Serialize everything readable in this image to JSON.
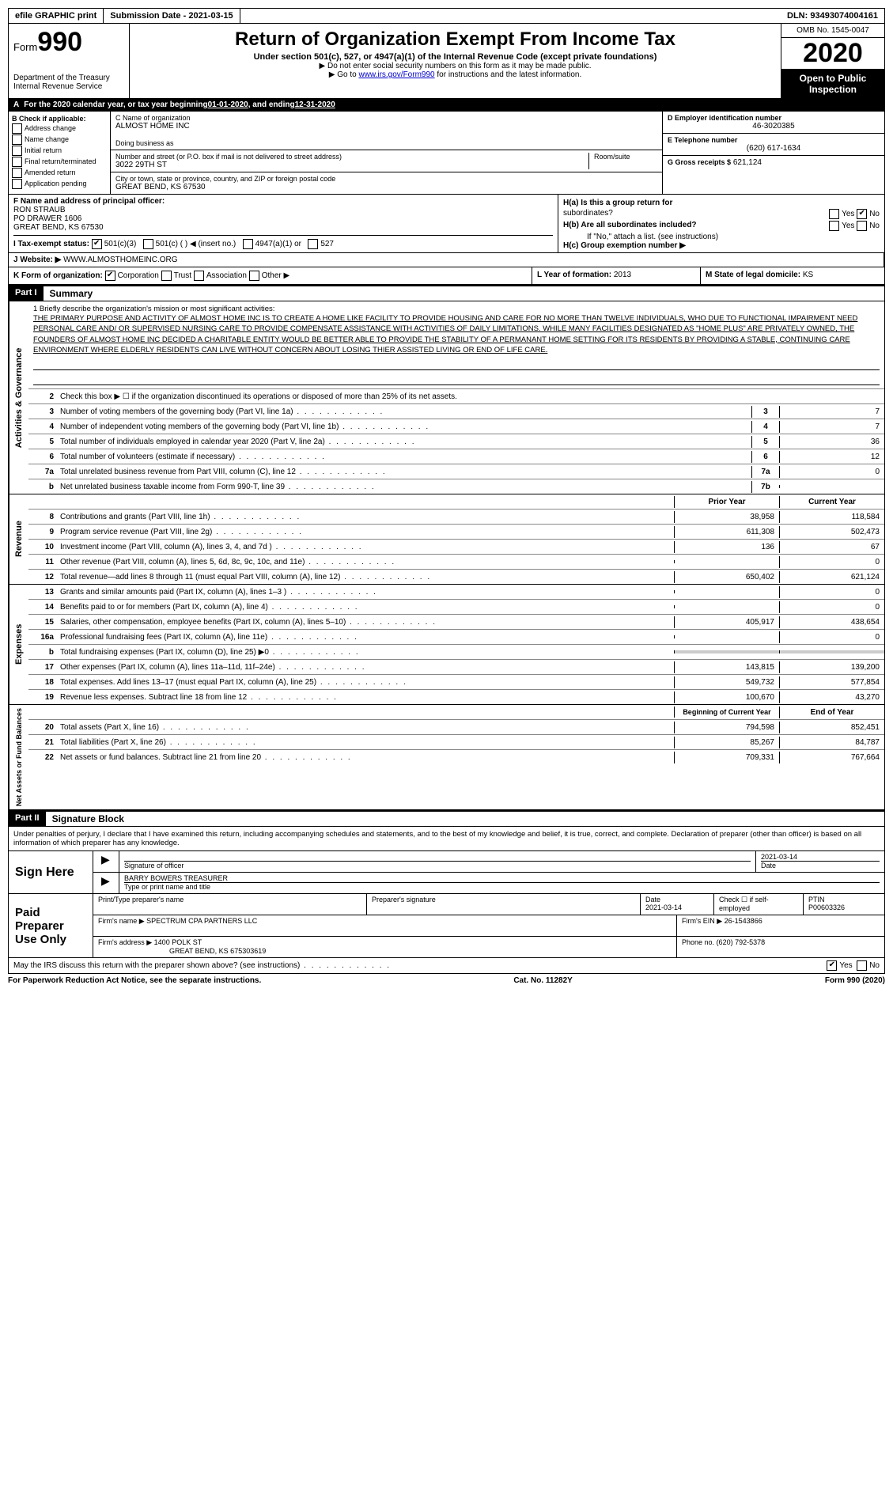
{
  "topbar": {
    "efile": "efile GRAPHIC print",
    "submission_label": "Submission Date - ",
    "submission_date": "2021-03-15",
    "dln_label": "DLN: ",
    "dln": "93493074004161"
  },
  "header": {
    "form_label": "Form",
    "form_number": "990",
    "dept": "Department of the Treasury\nInternal Revenue Service",
    "title": "Return of Organization Exempt From Income Tax",
    "subtitle": "Under section 501(c), 527, or 4947(a)(1) of the Internal Revenue Code (except private foundations)",
    "note1": "▶ Do not enter social security numbers on this form as it may be made public.",
    "note2_pre": "▶ Go to ",
    "note2_link": "www.irs.gov/Form990",
    "note2_post": " for instructions and the latest information.",
    "omb": "OMB No. 1545-0047",
    "year": "2020",
    "inspection": "Open to Public Inspection"
  },
  "row_a": {
    "label_a": "A",
    "text1": "For the 2020 calendar year, or tax year beginning ",
    "begin": "01-01-2020",
    "text2": " , and ending ",
    "end": "12-31-2020"
  },
  "col_b": {
    "label": "B Check if applicable:",
    "opts": [
      "Address change",
      "Name change",
      "Initial return",
      "Final return/terminated",
      "Amended return",
      "Application pending"
    ]
  },
  "col_c": {
    "name_label": "C Name of organization",
    "name": "ALMOST HOME INC",
    "dba_label": "Doing business as",
    "dba": "",
    "street_label": "Number and street (or P.O. box if mail is not delivered to street address)",
    "street": "3022 29TH ST",
    "room_label": "Room/suite",
    "city_label": "City or town, state or province, country, and ZIP or foreign postal code",
    "city": "GREAT BEND, KS  67530"
  },
  "col_d": {
    "label": "D Employer identification number",
    "value": "46-3020385",
    "e_label": "E Telephone number",
    "e_value": "(620) 617-1634",
    "g_label": "G Gross receipts $",
    "g_value": "621,124"
  },
  "col_f": {
    "label": "F  Name and address of principal officer:",
    "name": "RON STRAUB",
    "addr1": "PO DRAWER 1606",
    "addr2": "GREAT BEND, KS  67530"
  },
  "col_h": {
    "a_label": "H(a)  Is this a group return for",
    "a_label2": "subordinates?",
    "a_yes": "Yes",
    "a_no": "No",
    "b_label": "H(b)  Are all subordinates included?",
    "b_yes": "Yes",
    "b_no": "No",
    "b_note": "If \"No,\" attach a list. (see instructions)",
    "c_label": "H(c)  Group exemption number ▶"
  },
  "row_i": {
    "label": "I  Tax-exempt status:",
    "opt1": "501(c)(3)",
    "opt2": "501(c) (  ) ◀ (insert no.)",
    "opt3": "4947(a)(1) or",
    "opt4": "527"
  },
  "row_j": {
    "label": "J  Website: ▶",
    "value": "WWW.ALMOSTHOMEINC.ORG"
  },
  "row_k": {
    "label": "K Form of organization:",
    "opts": [
      "Corporation",
      "Trust",
      "Association",
      "Other ▶"
    ],
    "l_label": "L Year of formation: ",
    "l_value": "2013",
    "m_label": "M State of legal domicile: ",
    "m_value": "KS"
  },
  "part1": {
    "header": "Part I",
    "title": "Summary",
    "side_ag": "Activities & Governance",
    "side_rev": "Revenue",
    "side_exp": "Expenses",
    "side_net": "Net Assets or Fund Balances",
    "mission_label": "1   Briefly describe the organization's mission or most significant activities:",
    "mission_text": "THE PRIMARY PURPOSE AND ACTIVITY OF ALMOST HOME INC IS TO CREATE A HOME LIKE FACILITY TO PROVIDE HOUSING AND CARE FOR NO MORE THAN TWELVE INDIVIDUALS, WHO DUE TO FUNCTIONAL IMPAIRMENT NEED PERSONAL CARE AND/ OR SUPERVISED NURSING CARE TO PROVIDE COMPENSATE ASSISTANCE WITH ACTIVITIES OF DAILY LIMITATIONS. WHILE MANY FACILITIES DESIGNATED AS \"HOME PLUS\" ARE PRIVATELY OWNED, THE FOUNDERS OF ALMOST HOME INC DECIDED A CHARITABLE ENTITY WOULD BE BETTER ABLE TO PROVIDE THE STABILITY OF A PERMANANT HOME SETTING FOR ITS RESIDENTS BY PROVIDING A STABLE, CONTINUING CARE ENVIRONMENT WHERE ELDERLY RESIDENTS CAN LIVE WITHOUT CONCERN ABOUT LOSING THIER ASSISTED LIVING OR END OF LIFE CARE.",
    "line2": "Check this box ▶ ☐ if the organization discontinued its operations or disposed of more than 25% of its net assets.",
    "lines_single": [
      {
        "n": "3",
        "d": "Number of voting members of the governing body (Part VI, line 1a)",
        "box": "3",
        "v": "7"
      },
      {
        "n": "4",
        "d": "Number of independent voting members of the governing body (Part VI, line 1b)",
        "box": "4",
        "v": "7"
      },
      {
        "n": "5",
        "d": "Total number of individuals employed in calendar year 2020 (Part V, line 2a)",
        "box": "5",
        "v": "36"
      },
      {
        "n": "6",
        "d": "Total number of volunteers (estimate if necessary)",
        "box": "6",
        "v": "12"
      },
      {
        "n": "7a",
        "d": "Total unrelated business revenue from Part VIII, column (C), line 12",
        "box": "7a",
        "v": "0"
      },
      {
        "n": "b",
        "d": "Net unrelated business taxable income from Form 990-T, line 39",
        "box": "7b",
        "v": ""
      }
    ],
    "header_prior": "Prior Year",
    "header_current": "Current Year",
    "revenue_lines": [
      {
        "n": "8",
        "d": "Contributions and grants (Part VIII, line 1h)",
        "p": "38,958",
        "c": "118,584"
      },
      {
        "n": "9",
        "d": "Program service revenue (Part VIII, line 2g)",
        "p": "611,308",
        "c": "502,473"
      },
      {
        "n": "10",
        "d": "Investment income (Part VIII, column (A), lines 3, 4, and 7d )",
        "p": "136",
        "c": "67"
      },
      {
        "n": "11",
        "d": "Other revenue (Part VIII, column (A), lines 5, 6d, 8c, 9c, 10c, and 11e)",
        "p": "",
        "c": "0"
      },
      {
        "n": "12",
        "d": "Total revenue—add lines 8 through 11 (must equal Part VIII, column (A), line 12)",
        "p": "650,402",
        "c": "621,124"
      }
    ],
    "expense_lines": [
      {
        "n": "13",
        "d": "Grants and similar amounts paid (Part IX, column (A), lines 1–3 )",
        "p": "",
        "c": "0"
      },
      {
        "n": "14",
        "d": "Benefits paid to or for members (Part IX, column (A), line 4)",
        "p": "",
        "c": "0"
      },
      {
        "n": "15",
        "d": "Salaries, other compensation, employee benefits (Part IX, column (A), lines 5–10)",
        "p": "405,917",
        "c": "438,654"
      },
      {
        "n": "16a",
        "d": "Professional fundraising fees (Part IX, column (A), line 11e)",
        "p": "",
        "c": "0"
      },
      {
        "n": "b",
        "d": "Total fundraising expenses (Part IX, column (D), line 25) ▶0",
        "p": "shade",
        "c": "shade"
      },
      {
        "n": "17",
        "d": "Other expenses (Part IX, column (A), lines 11a–11d, 11f–24e)",
        "p": "143,815",
        "c": "139,200"
      },
      {
        "n": "18",
        "d": "Total expenses. Add lines 13–17 (must equal Part IX, column (A), line 25)",
        "p": "549,732",
        "c": "577,854"
      },
      {
        "n": "19",
        "d": "Revenue less expenses. Subtract line 18 from line 12",
        "p": "100,670",
        "c": "43,270"
      }
    ],
    "header_begin": "Beginning of Current Year",
    "header_end": "End of Year",
    "net_lines": [
      {
        "n": "20",
        "d": "Total assets (Part X, line 16)",
        "p": "794,598",
        "c": "852,451"
      },
      {
        "n": "21",
        "d": "Total liabilities (Part X, line 26)",
        "p": "85,267",
        "c": "84,787"
      },
      {
        "n": "22",
        "d": "Net assets or fund balances. Subtract line 21 from line 20",
        "p": "709,331",
        "c": "767,664"
      }
    ]
  },
  "part2": {
    "header": "Part II",
    "title": "Signature Block",
    "declare": "Under penalties of perjury, I declare that I have examined this return, including accompanying schedules and statements, and to the best of my knowledge and belief, it is true, correct, and complete. Declaration of preparer (other than officer) is based on all information of which preparer has any knowledge.",
    "sign_here": "Sign Here",
    "sig_officer": "Signature of officer",
    "sig_date": "Date",
    "sig_date_val": "2021-03-14",
    "sig_name": "BARRY BOWERS  TREASURER",
    "sig_name_label": "Type or print name and title",
    "paid": "Paid Preparer Use Only",
    "prep_name_label": "Print/Type preparer's name",
    "prep_sig_label": "Preparer's signature",
    "prep_date_label": "Date",
    "prep_date": "2021-03-14",
    "prep_check": "Check ☐ if self-employed",
    "ptin_label": "PTIN",
    "ptin": "P00603326",
    "firm_name_label": "Firm's name    ▶",
    "firm_name": "SPECTRUM CPA PARTNERS LLC",
    "firm_ein_label": "Firm's EIN ▶",
    "firm_ein": "26-1543866",
    "firm_addr_label": "Firm's address ▶",
    "firm_addr": "1400 POLK ST",
    "firm_addr2": "GREAT BEND, KS  675303619",
    "phone_label": "Phone no.",
    "phone": "(620) 792-5378",
    "discuss": "May the IRS discuss this return with the preparer shown above? (see instructions)",
    "discuss_yes": "Yes",
    "discuss_no": "No"
  },
  "footer": {
    "left": "For Paperwork Reduction Act Notice, see the separate instructions.",
    "center": "Cat. No. 11282Y",
    "right_pre": "Form ",
    "right_form": "990",
    "right_post": " (2020)"
  }
}
